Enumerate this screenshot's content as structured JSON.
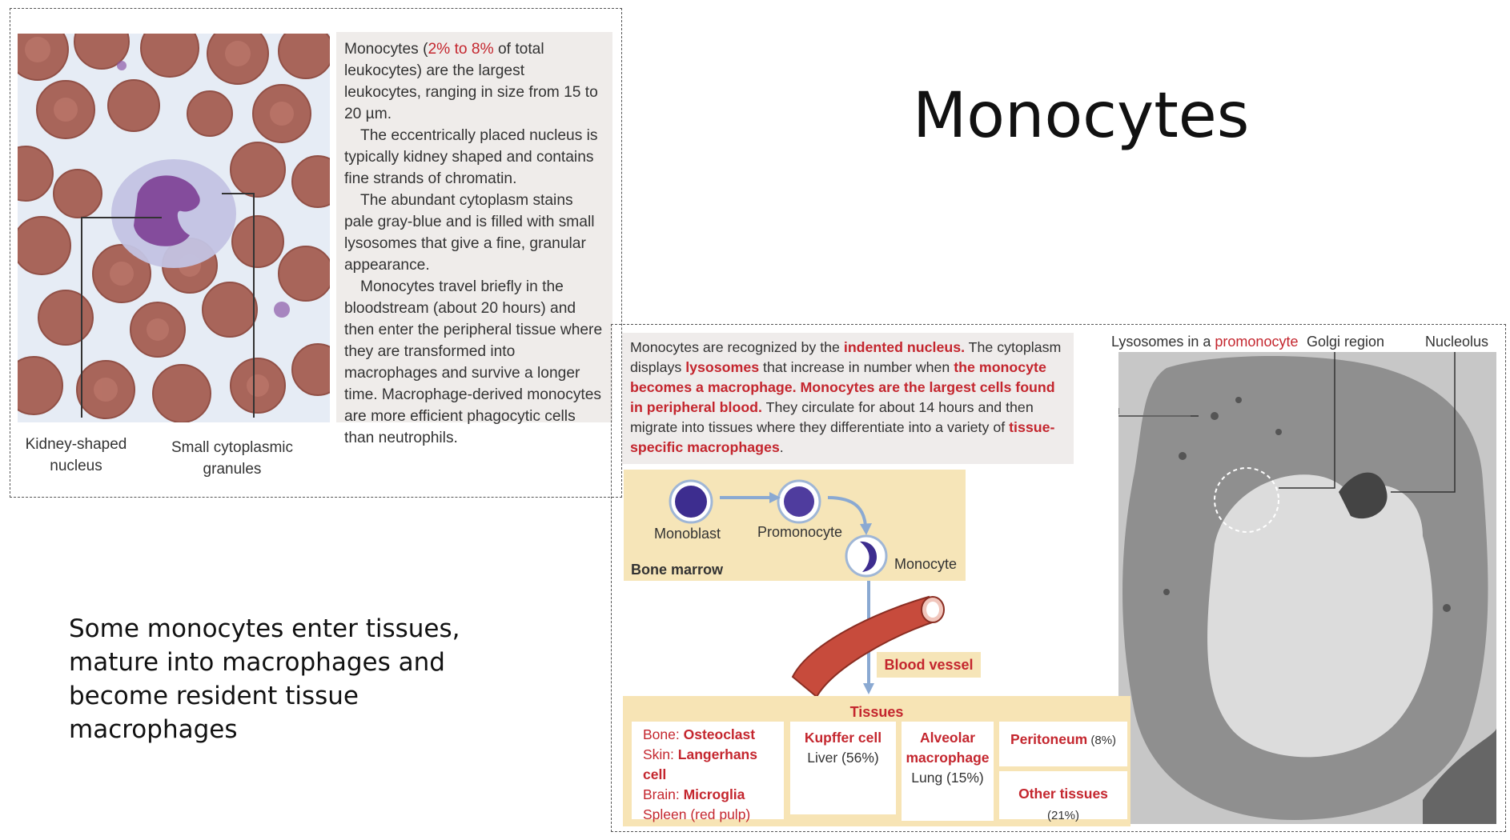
{
  "slide": {
    "title": "Monocytes",
    "body_text": "Some monocytes enter tissues, mature into macrophages and become resident tissue macrophages"
  },
  "panel1": {
    "para1_a": "Monocytes (",
    "para1_pct": "2% to 8%",
    "para1_b": " of total leukocytes) are the largest leukocytes, ranging in size from 15 to 20 µm.",
    "para2": "The eccentrically placed nucleus is typically kidney shaped and contains fine strands of chromatin.",
    "para3": "The abundant cytoplasm stains pale gray-blue and is filled with small lysosomes that give a fine, granular appearance.",
    "para4": "Monocytes travel briefly in the bloodstream (about 20 hours) and then enter the peripheral tissue where they are transformed into macrophages and survive a longer time.  Macrophage-derived monocytes are more efficient phagocytic cells than neutrophils.",
    "label_nucleus_1": "Kidney-shaped",
    "label_nucleus_2": "nucleus",
    "label_granules_1": "Small cytoplasmic",
    "label_granules_2": "granules"
  },
  "panel2": {
    "t1": "Monocytes are recognized by the ",
    "t2": "indented nucleus.",
    "t3": " The cytoplasm displays ",
    "t4": "lysosomes",
    "t5": " that increase in number when ",
    "t6": "the monocyte becomes a macrophage.  Monocytes are the largest cells found in peripheral blood.",
    "t7": " They circulate for about 14 hours and then migrate into tissues where they differentiate into a variety of ",
    "t8": "tissue-specific macrophages",
    "t9": ".",
    "em_label_lysosomes": "Lysosomes in a ",
    "em_label_promonocyte": "promonocyte",
    "em_label_golgi": "Golgi region",
    "em_label_nucleolus": "Nucleolus",
    "flow": {
      "monoblast": "Monoblast",
      "promonocyte": "Promonocyte",
      "monocyte": "Monocyte",
      "bone_marrow": "Bone marrow",
      "blood_vessel": "Blood vessel"
    },
    "tissues": {
      "heading": "Tissues",
      "bone_label": "Bone: ",
      "bone_value": "Osteoclast",
      "skin_label": "Skin: ",
      "skin_value": "Langerhans cell",
      "brain_label": "Brain: ",
      "brain_value": "Microglia",
      "spleen_label": "Spleen ",
      "spleen_value": "(red pulp)",
      "kupffer": "Kupffer  cell",
      "liver": "Liver (56%)",
      "alveolar_1": "Alveolar",
      "alveolar_2": "macrophage",
      "lung": "Lung (15%)",
      "peritoneum": "Peritoneum",
      "peritoneum_pct": " (8%)",
      "other": "Other tissues",
      "other_pct": " (21%)"
    }
  },
  "colors": {
    "accent_red": "#c4262e",
    "panel_beige": "#f6e5b8",
    "text_panel_gray": "#efeceb"
  }
}
